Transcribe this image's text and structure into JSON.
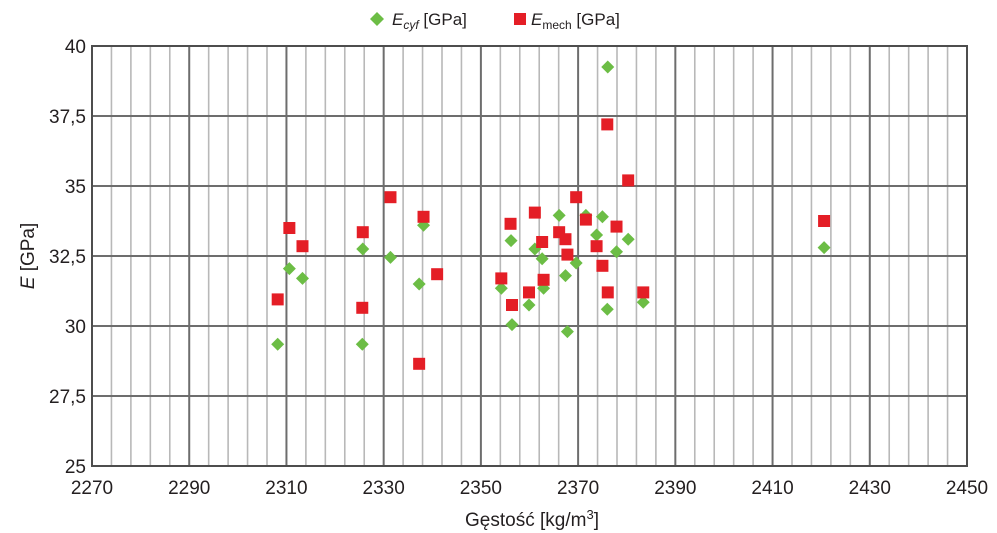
{
  "chart_data": {
    "type": "scatter",
    "xlabel": "Gęstość [kg/m",
    "xlabel_sup": "3",
    "xlabel_end": "]",
    "ylabel_italic": "E",
    "ylabel_rest": " [GPa]",
    "xlim": [
      2270,
      2450
    ],
    "ylim": [
      25,
      40
    ],
    "x_ticks": [
      2270,
      2290,
      2310,
      2330,
      2350,
      2370,
      2390,
      2410,
      2430,
      2450
    ],
    "x_tick_labels": [
      "2270",
      "2290",
      "2310",
      "2330",
      "2350",
      "2370",
      "2390",
      "2410",
      "2430",
      "2450"
    ],
    "y_ticks": [
      25,
      27.5,
      30,
      32.5,
      35,
      37.5,
      40
    ],
    "y_tick_labels": [
      "25",
      "27,5",
      "30",
      "32,5",
      "35",
      "37,5",
      "40"
    ],
    "grid": true,
    "legend_position": "top-center",
    "series": [
      {
        "name": "Ecyf [GPa]",
        "legend_main": "E",
        "legend_sub": "cyf",
        "legend_rest": " [GPa]",
        "marker": "diamond",
        "color": "#6cbd45",
        "x": [
          2308.2,
          2310.6,
          2313.3,
          2325.7,
          2325.6,
          2331.4,
          2337.3,
          2338.2,
          2354.2,
          2356.2,
          2356.4,
          2359.9,
          2361.1,
          2362.6,
          2362.9,
          2366.1,
          2367.4,
          2367.8,
          2369.6,
          2371.6,
          2373.8,
          2375.0,
          2376.0,
          2376.1,
          2377.9,
          2380.3,
          2383.4,
          2420.6
        ],
        "y": [
          29.35,
          32.05,
          31.7,
          32.75,
          29.35,
          32.45,
          31.5,
          33.6,
          31.35,
          33.05,
          30.05,
          30.75,
          32.75,
          32.4,
          31.35,
          33.95,
          31.8,
          29.8,
          32.25,
          33.95,
          33.25,
          33.9,
          30.6,
          39.25,
          32.65,
          33.1,
          30.85,
          32.8
        ]
      },
      {
        "name": "Emech [GPa]",
        "legend_main": "E",
        "legend_sub": "mech",
        "legend_rest": " [GPa]",
        "marker": "square",
        "color": "#e41e26",
        "x": [
          2308.2,
          2310.6,
          2313.3,
          2325.7,
          2325.6,
          2331.4,
          2337.3,
          2338.2,
          2341.0,
          2354.2,
          2356.1,
          2356.4,
          2359.9,
          2361.1,
          2362.6,
          2362.9,
          2366.1,
          2367.4,
          2367.8,
          2369.6,
          2371.6,
          2373.8,
          2375.0,
          2376.0,
          2376.1,
          2377.9,
          2380.3,
          2383.4,
          2420.6
        ],
        "y": [
          30.95,
          33.5,
          32.85,
          33.35,
          30.65,
          34.6,
          28.65,
          33.9,
          31.85,
          31.7,
          33.65,
          30.75,
          31.2,
          34.05,
          33.0,
          31.65,
          33.35,
          33.1,
          32.55,
          34.6,
          33.8,
          32.85,
          32.15,
          37.2,
          31.2,
          33.55,
          35.2,
          31.2,
          33.75
        ]
      }
    ]
  }
}
